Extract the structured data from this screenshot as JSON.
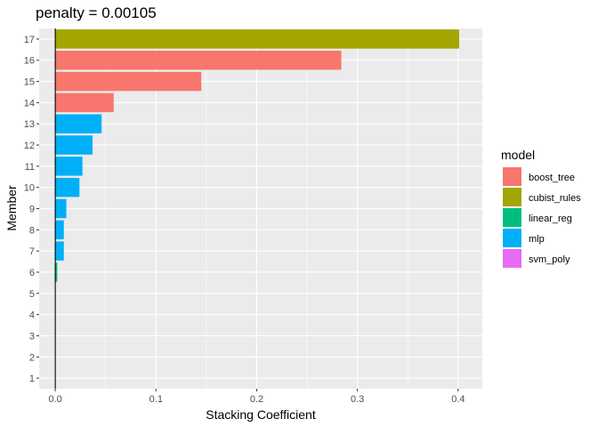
{
  "chart_data": {
    "type": "bar",
    "orientation": "horizontal",
    "title": "penalty = 0.00105",
    "xlabel": "Stacking Coefficient",
    "ylabel": "Member",
    "xlim": [
      -0.016,
      0.424
    ],
    "x_ticks": [
      0.0,
      0.1,
      0.2,
      0.3,
      0.4
    ],
    "x_tick_labels": [
      "0.0",
      "0.1",
      "0.2",
      "0.3",
      "0.4"
    ],
    "grid": true,
    "zero_line": true,
    "legend": {
      "title": "model",
      "placement": "right",
      "entries": [
        {
          "name": "boost_tree",
          "color": "#F8766D"
        },
        {
          "name": "cubist_rules",
          "color": "#A3A500"
        },
        {
          "name": "linear_reg",
          "color": "#00BF7D"
        },
        {
          "name": "mlp",
          "color": "#00B0F6"
        },
        {
          "name": "svm_poly",
          "color": "#E76BF3"
        }
      ]
    },
    "categories": [
      "1",
      "2",
      "3",
      "4",
      "5",
      "6",
      "7",
      "8",
      "9",
      "10",
      "11",
      "12",
      "13",
      "14",
      "15",
      "16",
      "17"
    ],
    "bars": [
      {
        "member": "17",
        "value": 0.401,
        "model": "cubist_rules"
      },
      {
        "member": "16",
        "value": 0.284,
        "model": "boost_tree"
      },
      {
        "member": "15",
        "value": 0.145,
        "model": "boost_tree"
      },
      {
        "member": "14",
        "value": 0.058,
        "model": "boost_tree"
      },
      {
        "member": "13",
        "value": 0.046,
        "model": "mlp"
      },
      {
        "member": "12",
        "value": 0.037,
        "model": "mlp"
      },
      {
        "member": "11",
        "value": 0.027,
        "model": "mlp"
      },
      {
        "member": "10",
        "value": 0.024,
        "model": "mlp"
      },
      {
        "member": "9",
        "value": 0.011,
        "model": "mlp"
      },
      {
        "member": "8",
        "value": 0.0085,
        "model": "mlp"
      },
      {
        "member": "7",
        "value": 0.0085,
        "model": "mlp"
      },
      {
        "member": "6",
        "value": 0.002,
        "model": "linear_reg"
      },
      {
        "member": "5",
        "value": 0.0,
        "model": "svm_poly"
      },
      {
        "member": "4",
        "value": 0.0,
        "model": "svm_poly"
      },
      {
        "member": "3",
        "value": 0.0,
        "model": "svm_poly"
      },
      {
        "member": "2",
        "value": 0.0,
        "model": "svm_poly"
      },
      {
        "member": "1",
        "value": 0.0,
        "model": "svm_poly"
      }
    ]
  }
}
